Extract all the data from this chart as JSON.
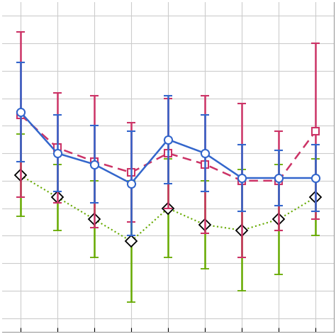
{
  "x": [
    1,
    2,
    3,
    4,
    5,
    6,
    7,
    8,
    9
  ],
  "blue_y": [
    7.5,
    6.0,
    5.6,
    4.9,
    6.5,
    6.0,
    5.1,
    5.1,
    5.1
  ],
  "blue_yerr": [
    1.8,
    1.4,
    1.4,
    1.9,
    1.6,
    1.4,
    1.2,
    1.0,
    1.2
  ],
  "red_y": [
    7.4,
    6.2,
    5.7,
    5.3,
    6.0,
    5.6,
    5.0,
    5.0,
    6.8
  ],
  "red_yerr": [
    3.0,
    2.0,
    2.4,
    1.8,
    2.0,
    2.5,
    2.8,
    1.8,
    3.2
  ],
  "green_y": [
    5.2,
    4.4,
    3.6,
    2.8,
    4.0,
    3.4,
    3.2,
    3.6,
    4.4
  ],
  "green_yerr": [
    1.5,
    1.2,
    1.4,
    2.2,
    1.8,
    1.6,
    2.2,
    2.0,
    1.4
  ],
  "blue_color": "#3366cc",
  "red_color": "#cc3366",
  "green_color": "#66aa00",
  "bg_color": "#ffffff",
  "grid_color": "#cccccc"
}
